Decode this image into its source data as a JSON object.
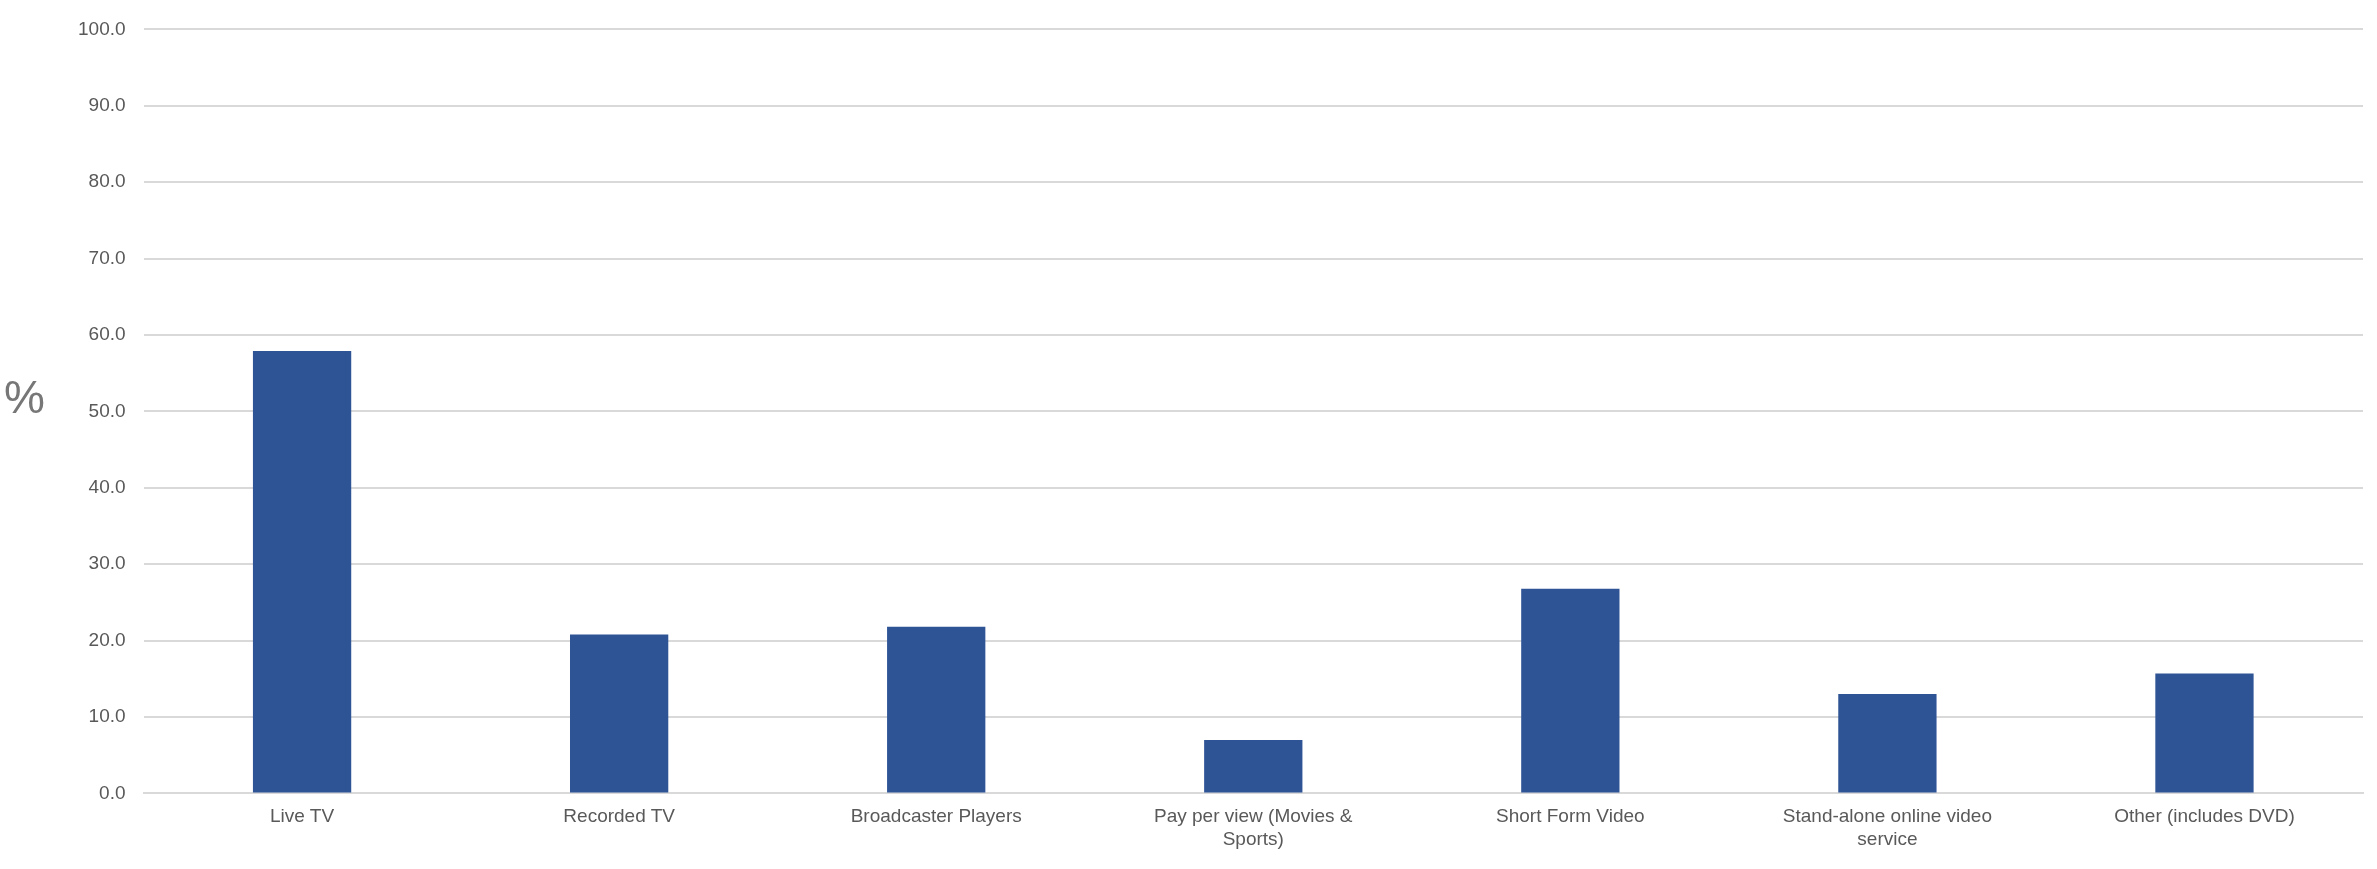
{
  "chart_data": {
    "type": "bar",
    "ylabel": "%",
    "categories": [
      "Live TV",
      "Recorded TV",
      "Broadcaster Players",
      "Pay per view (Movies & Sports)",
      "Short Form Video",
      "Stand-alone online video service",
      "Other (includes DVD)"
    ],
    "values": [
      57.9,
      20.8,
      21.8,
      7.0,
      26.8,
      13.0,
      15.7
    ],
    "color": "#2e5496",
    "ylim": [
      0,
      100
    ],
    "yticks": [
      {
        "value": 0,
        "label": "0.0"
      },
      {
        "value": 10,
        "label": "10.0"
      },
      {
        "value": 20,
        "label": "20.0"
      },
      {
        "value": 30,
        "label": "30.0"
      },
      {
        "value": 40,
        "label": "40.0"
      },
      {
        "value": 50,
        "label": "50.0"
      },
      {
        "value": 60,
        "label": "60.0"
      },
      {
        "value": 70,
        "label": "70.0"
      },
      {
        "value": 80,
        "label": "80.0"
      },
      {
        "value": 90,
        "label": "90.0"
      },
      {
        "value": 100,
        "label": "100.0"
      }
    ],
    "grid": "y",
    "legend": false
  }
}
